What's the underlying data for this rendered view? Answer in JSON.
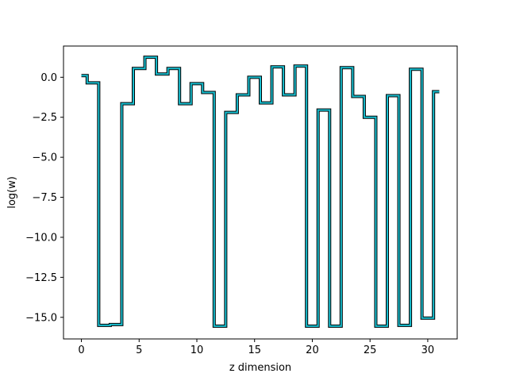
{
  "chart_data": {
    "type": "line",
    "step": "mid",
    "xlabel": "z dimension",
    "ylabel": "log(w)",
    "xlim": [
      -1.55,
      32.55
    ],
    "ylim": [
      -16.35,
      1.95
    ],
    "xticks": [
      0,
      5,
      10,
      15,
      20,
      25,
      30
    ],
    "yticks": [
      0.0,
      -2.5,
      -5.0,
      -7.5,
      -10.0,
      -12.5,
      -15.0
    ],
    "xtick_labels": [
      "0",
      "5",
      "10",
      "15",
      "20",
      "25",
      "30"
    ],
    "ytick_labels": [
      "0.0",
      "−2.5",
      "−5.0",
      "−7.5",
      "−10.0",
      "−12.5",
      "−15.0"
    ],
    "series": [
      {
        "color": "#17becf",
        "edge_color": "#000000",
        "x": [
          0,
          1,
          2,
          3,
          4,
          5,
          6,
          7,
          8,
          9,
          10,
          11,
          12,
          13,
          14,
          15,
          16,
          17,
          18,
          19,
          20,
          21,
          22,
          23,
          24,
          25,
          26,
          27,
          28,
          29,
          30,
          31
        ],
        "y": [
          0.1,
          -0.35,
          -15.5,
          -15.45,
          -1.65,
          0.55,
          1.25,
          0.2,
          0.55,
          -1.65,
          -0.4,
          -0.95,
          -15.55,
          -2.2,
          -1.1,
          0.0,
          -1.6,
          0.65,
          -1.1,
          0.7,
          -15.55,
          -2.05,
          -15.55,
          0.6,
          -1.2,
          -2.5,
          -15.55,
          -1.15,
          -15.5,
          0.5,
          -15.05,
          -0.9
        ]
      }
    ]
  }
}
